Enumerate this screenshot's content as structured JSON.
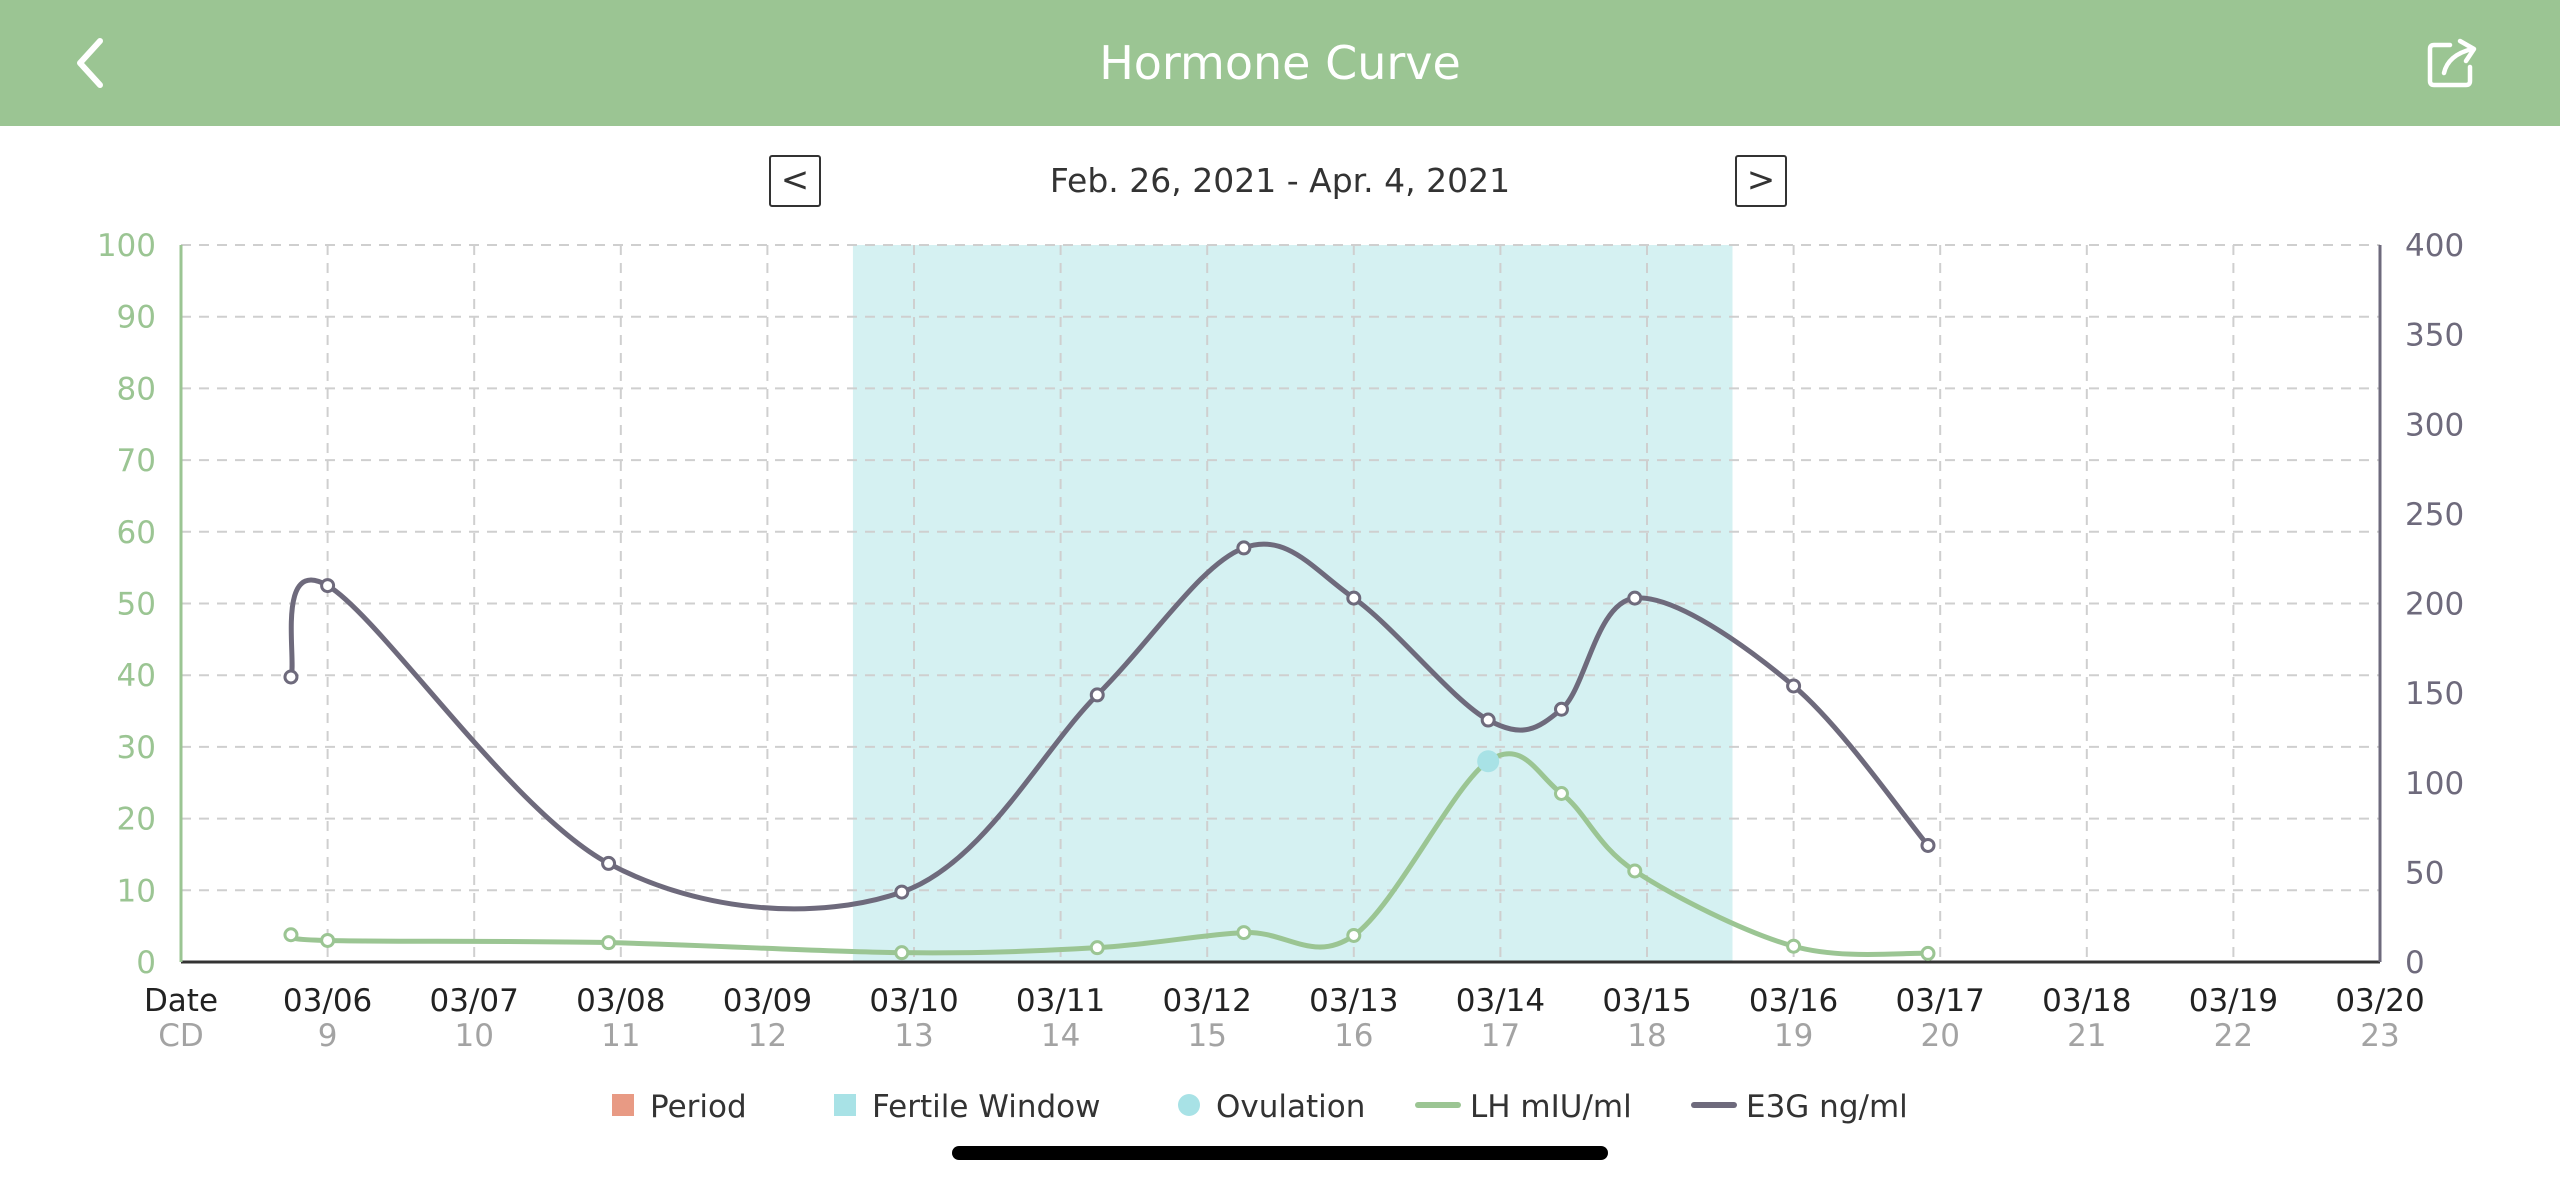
{
  "header": {
    "title": "Hormone Curve",
    "back_icon": "chevron-left-icon",
    "share_icon": "share-icon",
    "background": "#9bc593"
  },
  "navigation": {
    "prev_label": "<",
    "next_label": ">",
    "date_range": "Feb. 26, 2021 - Apr. 4, 2021"
  },
  "chart_data": {
    "type": "line",
    "title": "",
    "x_row_labels": {
      "date": "Date",
      "cd": "CD"
    },
    "x_ticks": [
      {
        "date": "03/06",
        "cd": "9"
      },
      {
        "date": "03/07",
        "cd": "10"
      },
      {
        "date": "03/08",
        "cd": "11"
      },
      {
        "date": "03/09",
        "cd": "12"
      },
      {
        "date": "03/10",
        "cd": "13"
      },
      {
        "date": "03/11",
        "cd": "14"
      },
      {
        "date": "03/12",
        "cd": "15"
      },
      {
        "date": "03/13",
        "cd": "16"
      },
      {
        "date": "03/14",
        "cd": "17"
      },
      {
        "date": "03/15",
        "cd": "18"
      },
      {
        "date": "03/16",
        "cd": "19"
      },
      {
        "date": "03/17",
        "cd": "20"
      },
      {
        "date": "03/18",
        "cd": "21"
      },
      {
        "date": "03/19",
        "cd": "22"
      },
      {
        "date": "03/20",
        "cd": "23"
      }
    ],
    "x_range": [
      "03/05",
      "03/20"
    ],
    "y_left": {
      "min": 0,
      "max": 100,
      "ticks": [
        0,
        10,
        20,
        30,
        40,
        50,
        60,
        70,
        80,
        90,
        100
      ]
    },
    "y_right": {
      "min": 0,
      "max": 400,
      "ticks": [
        0,
        50,
        100,
        150,
        200,
        250,
        300,
        350,
        400
      ]
    },
    "grid": true,
    "fertile_window": {
      "start": "03/09 14:00",
      "end": "03/15 14:00"
    },
    "ovulation": {
      "x": "03/13 22:00",
      "y": 28
    },
    "series": [
      {
        "name": "LH mIU/ml",
        "axis": "left",
        "color": "#9bc593",
        "points": [
          {
            "x": "03/05 18:00",
            "y": 3.8
          },
          {
            "x": "03/06 00:00",
            "y": 3.0
          },
          {
            "x": "03/07 22:00",
            "y": 2.7
          },
          {
            "x": "03/09 22:00",
            "y": 1.3
          },
          {
            "x": "03/11 06:00",
            "y": 2.0
          },
          {
            "x": "03/12 06:00",
            "y": 4.1
          },
          {
            "x": "03/13 00:00",
            "y": 3.7
          },
          {
            "x": "03/13 22:00",
            "y": 28.0
          },
          {
            "x": "03/14 10:00",
            "y": 23.5
          },
          {
            "x": "03/14 22:00",
            "y": 12.7
          },
          {
            "x": "03/16 00:00",
            "y": 2.2
          },
          {
            "x": "03/16 22:00",
            "y": 1.2
          }
        ]
      },
      {
        "name": "E3G ng/ml",
        "axis": "right",
        "color": "#6e6a7c",
        "points": [
          {
            "x": "03/05 18:00",
            "y": 159
          },
          {
            "x": "03/06 00:00",
            "y": 210
          },
          {
            "x": "03/07 22:00",
            "y": 55
          },
          {
            "x": "03/09 22:00",
            "y": 39
          },
          {
            "x": "03/11 06:00",
            "y": 149
          },
          {
            "x": "03/12 06:00",
            "y": 231
          },
          {
            "x": "03/13 00:00",
            "y": 203
          },
          {
            "x": "03/13 22:00",
            "y": 135
          },
          {
            "x": "03/14 10:00",
            "y": 141
          },
          {
            "x": "03/14 22:00",
            "y": 203
          },
          {
            "x": "03/16 00:00",
            "y": 154
          },
          {
            "x": "03/16 22:00",
            "y": 65
          }
        ]
      }
    ],
    "legend": {
      "position": "bottom-center",
      "items": [
        {
          "label": "Period",
          "marker": "square",
          "color": "#e89a84"
        },
        {
          "label": "Fertile Window",
          "marker": "square",
          "color": "#a8e2e6"
        },
        {
          "label": "Ovulation",
          "marker": "circle",
          "color": "#a8e2e6"
        },
        {
          "label": "LH mIU/ml",
          "marker": "line",
          "color": "#9bc593"
        },
        {
          "label": "E3G ng/ml",
          "marker": "line",
          "color": "#6e6a7c"
        }
      ]
    }
  }
}
